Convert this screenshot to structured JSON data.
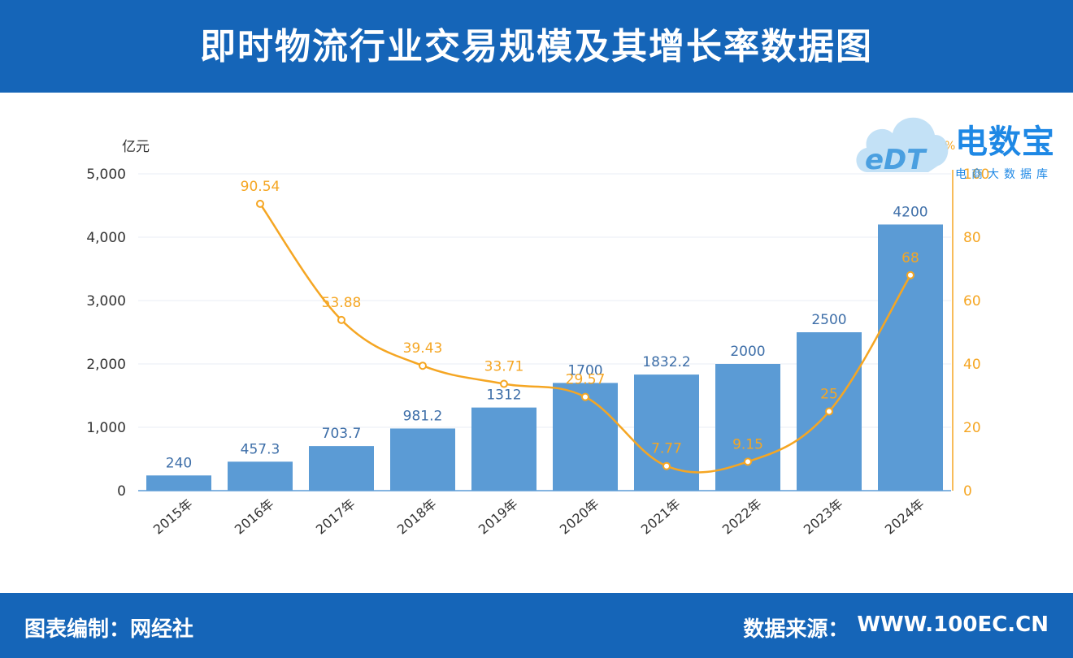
{
  "header": {
    "title": "即时物流行业交易规模及其增长率数据图"
  },
  "footer": {
    "left": "图表编制：网经社",
    "right_label": "数据来源：",
    "right_value": "WWW.100EC.CN"
  },
  "logo": {
    "brand": "电数宝",
    "sub": "电商大数据库",
    "mark": "eDT"
  },
  "colors": {
    "header_bg": "#1565b8",
    "bar": "#5b9bd5",
    "line": "#f5a623",
    "bar_label": "#3d6ea8"
  },
  "chart_data": {
    "type": "bar",
    "title": "",
    "categories": [
      "2015年",
      "2016年",
      "2017年",
      "2018年",
      "2019年",
      "2020年",
      "2021年",
      "2022年",
      "2023年",
      "2024年"
    ],
    "series": [
      {
        "type": "bar",
        "axis": "left",
        "values": [
          240,
          457.3,
          703.7,
          981.2,
          1312,
          1700,
          1832.2,
          2000,
          2500,
          4200
        ],
        "labels": [
          "240",
          "457.3",
          "703.7",
          "981.2",
          "1312",
          "1700",
          "1832.2",
          "2000",
          "2500",
          "4200"
        ]
      },
      {
        "type": "line",
        "axis": "right",
        "values": [
          null,
          90.54,
          53.88,
          39.43,
          33.71,
          29.57,
          7.77,
          9.15,
          25,
          68
        ],
        "labels": [
          "",
          "90.54",
          "53.88",
          "39.43",
          "33.71",
          "29.57",
          "7.77",
          "9.15",
          "25",
          "68"
        ]
      }
    ],
    "y_left": {
      "unit": "亿元",
      "min": 0,
      "max": 5000,
      "ticks": [
        0,
        1000,
        2000,
        3000,
        4000,
        5000
      ],
      "tick_labels": [
        "0",
        "1,000",
        "2,000",
        "3,000",
        "4,000",
        "5,000"
      ]
    },
    "y_right": {
      "unit": "%",
      "min": 0,
      "max": 100,
      "ticks": [
        0,
        20,
        40,
        60,
        80,
        100
      ],
      "tick_labels": [
        "0",
        "20",
        "40",
        "60",
        "80",
        "100"
      ]
    },
    "grid": true
  }
}
